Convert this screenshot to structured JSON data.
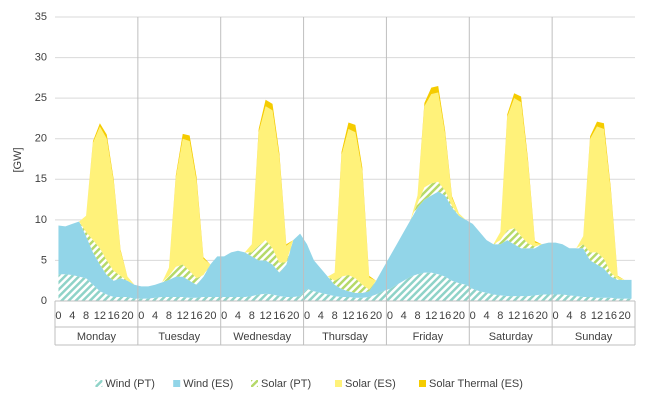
{
  "chart_data": {
    "type": "area",
    "stacked": true,
    "y_label": "[GW]",
    "categories": [
      "0",
      null,
      "4",
      null,
      "8",
      null,
      "12",
      null,
      "16",
      null,
      "20",
      null,
      "0",
      null,
      "4",
      null,
      "8",
      null,
      "12",
      null,
      "16",
      null,
      "20",
      null,
      "0",
      null,
      "4",
      null,
      "8",
      null,
      "12",
      null,
      "16",
      null,
      "20",
      null,
      "0",
      null,
      "4",
      null,
      "8",
      null,
      "12",
      null,
      "16",
      null,
      "20",
      null,
      "0",
      null,
      "4",
      null,
      "8",
      null,
      "12",
      null,
      "16",
      null,
      "20",
      null,
      "0",
      null,
      "4",
      null,
      "8",
      null,
      "12",
      null,
      "16",
      null,
      "20",
      null,
      "0",
      null,
      "4",
      null,
      "8",
      null,
      "12",
      null,
      "16",
      null,
      "20",
      null
    ],
    "groups": [
      "Monday",
      "Tuesday",
      "Wednesday",
      "Thursday",
      "Friday",
      "Saturday",
      "Sunday"
    ],
    "series": [
      {
        "name": "Wind (PT)",
        "color": "#8fd3c8",
        "hatch": true,
        "values": [
          3.3,
          3.3,
          3.2,
          3.0,
          2.8,
          2.0,
          1.2,
          0.8,
          0.5,
          0.5,
          0.5,
          0.3,
          0.3,
          0.3,
          0.4,
          0.5,
          0.5,
          0.5,
          0.5,
          0.4,
          0.4,
          0.5,
          0.5,
          0.5,
          0.5,
          0.5,
          0.5,
          0.5,
          0.6,
          0.8,
          0.9,
          0.8,
          0.6,
          0.5,
          0.5,
          0.6,
          1.5,
          1.2,
          1.0,
          0.8,
          0.6,
          0.5,
          0.5,
          0.4,
          0.4,
          0.5,
          0.8,
          1.2,
          1.5,
          2.0,
          2.5,
          3.0,
          3.3,
          3.5,
          3.5,
          3.3,
          3.0,
          2.5,
          2.2,
          2.0,
          1.5,
          1.2,
          1.0,
          0.8,
          0.7,
          0.6,
          0.6,
          0.6,
          0.6,
          0.7,
          0.8,
          0.8,
          0.8,
          0.8,
          0.7,
          0.6,
          0.5,
          0.5,
          0.4,
          0.4,
          0.4,
          0.3,
          0.3,
          0.3
        ]
      },
      {
        "name": "Wind (ES)",
        "color": "#92d5e8",
        "hatch": false,
        "values": [
          6.0,
          5.9,
          6.3,
          6.8,
          5.2,
          4.0,
          3.3,
          2.4,
          2.0,
          2.3,
          2.0,
          1.7,
          1.5,
          1.5,
          1.6,
          1.8,
          2.1,
          2.5,
          2.5,
          2.1,
          1.6,
          2.5,
          4.0,
          5.0,
          5.0,
          5.5,
          5.7,
          5.5,
          4.9,
          4.2,
          4.1,
          3.7,
          2.9,
          4.0,
          7.0,
          7.7,
          5.5,
          3.8,
          3.0,
          2.2,
          1.4,
          1.0,
          0.7,
          0.6,
          0.6,
          0.7,
          1.7,
          2.8,
          4.0,
          5.0,
          6.0,
          7.0,
          8.2,
          9.0,
          9.5,
          10.2,
          10.0,
          9.0,
          8.3,
          8.0,
          8.0,
          7.3,
          6.5,
          6.2,
          6.3,
          6.9,
          6.4,
          5.9,
          5.9,
          5.8,
          6.2,
          6.4,
          6.4,
          6.2,
          5.8,
          5.9,
          6.0,
          4.5,
          4.1,
          3.6,
          2.6,
          2.3,
          2.3,
          2.3
        ]
      },
      {
        "name": "Solar (PT)",
        "color": "#b5d96a",
        "hatch": true,
        "values": [
          0,
          0,
          0,
          0,
          0.5,
          1.5,
          2.0,
          1.8,
          1.2,
          0.3,
          0,
          0,
          0,
          0,
          0,
          0,
          0.5,
          1.2,
          1.5,
          1.2,
          0.8,
          0.2,
          0,
          0,
          0,
          0,
          0,
          0,
          0.5,
          1.8,
          2.5,
          2.0,
          1.2,
          0.3,
          0,
          0,
          0,
          0,
          0,
          0,
          0.5,
          1.5,
          2.0,
          1.8,
          1.0,
          0.2,
          0,
          0,
          0,
          0,
          0,
          0,
          0.5,
          1.5,
          1.5,
          1.2,
          0.6,
          0.2,
          0,
          0,
          0,
          0,
          0,
          0,
          0.5,
          1.2,
          2.0,
          1.5,
          0.6,
          0.2,
          0,
          0,
          0,
          0,
          0,
          0,
          0.5,
          1.0,
          1.5,
          1.2,
          0.5,
          0.1,
          0,
          0
        ]
      },
      {
        "name": "Solar (ES)",
        "color": "#fff27a",
        "hatch": false,
        "values": [
          0,
          0,
          0,
          0,
          2,
          12,
          15,
          15,
          11,
          3,
          0.5,
          0,
          0,
          0,
          0,
          0,
          1,
          11,
          15.5,
          16,
          12,
          2,
          0,
          0,
          0,
          0,
          0,
          0,
          1,
          14,
          16.5,
          17,
          13,
          2,
          0,
          0,
          0,
          0,
          0,
          0,
          1,
          15,
          18,
          18,
          14,
          1.5,
          0,
          0,
          0,
          0,
          0,
          0,
          1,
          10,
          11,
          11,
          7,
          1,
          0.3,
          0,
          0,
          0,
          0,
          0,
          1,
          14,
          16,
          16.5,
          10,
          0.5,
          0,
          0,
          0,
          0,
          0,
          0,
          1,
          14,
          15.5,
          16,
          10,
          0.3,
          0,
          0
        ]
      },
      {
        "name": "Solar Thermal (ES)",
        "color": "#f5cc00",
        "hatch": false,
        "values": [
          0,
          0,
          0,
          0,
          0,
          0.2,
          0.4,
          0.5,
          0.3,
          0.2,
          0,
          0,
          0,
          0,
          0,
          0,
          0,
          0.3,
          0.6,
          0.7,
          0.5,
          0.2,
          0,
          0,
          0,
          0,
          0,
          0,
          0,
          0.4,
          0.8,
          0.8,
          0.5,
          0.2,
          0,
          0,
          0,
          0,
          0,
          0,
          0,
          0.4,
          0.8,
          0.9,
          0.5,
          0.2,
          0,
          0,
          0,
          0,
          0,
          0,
          0,
          0.4,
          0.8,
          0.8,
          0.4,
          0.2,
          0,
          0,
          0,
          0,
          0,
          0,
          0,
          0.3,
          0.6,
          0.7,
          0.4,
          0.2,
          0,
          0,
          0,
          0,
          0,
          0,
          0,
          0.3,
          0.6,
          0.7,
          0.4,
          0.1,
          0,
          0
        ]
      }
    ],
    "ylim": [
      0,
      35
    ],
    "yticks": [
      0,
      5,
      10,
      15,
      20,
      25,
      30,
      35
    ],
    "grid": true,
    "legend": "bottom"
  }
}
